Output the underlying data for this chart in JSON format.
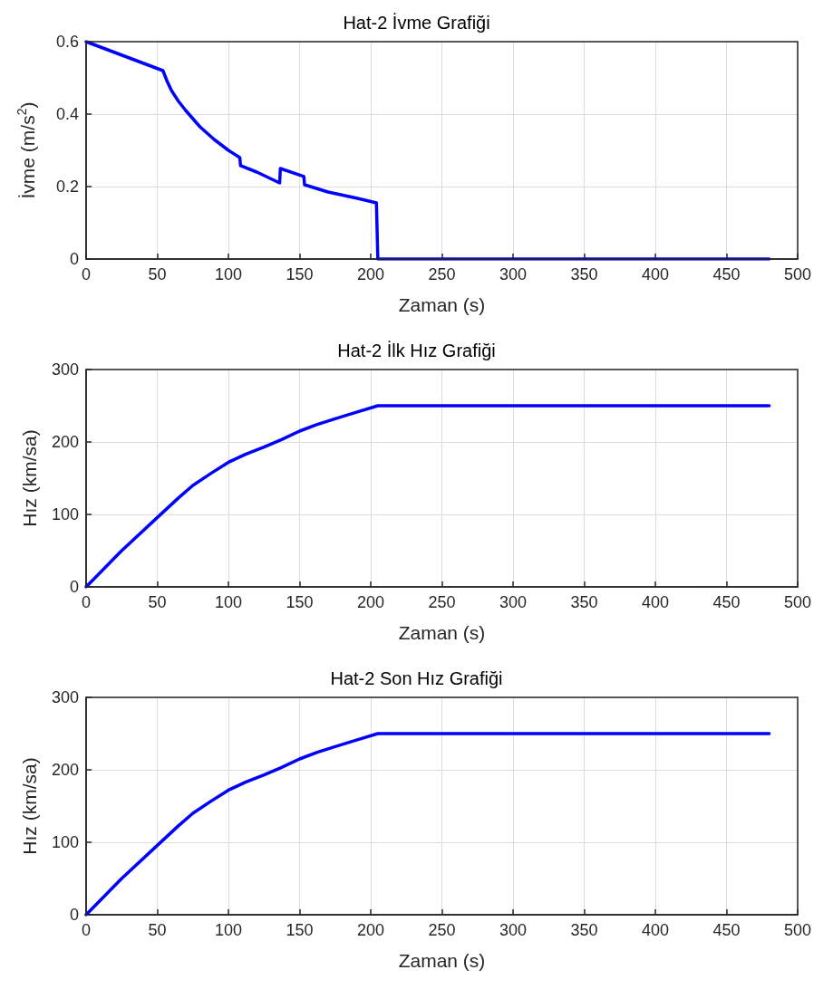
{
  "chart_data": [
    {
      "type": "line",
      "title": "Hat-2 İvme Grafiği",
      "xlabel": "Zaman (s)",
      "ylabel": "İvme (m/s$^{2}$)",
      "xlim": [
        0,
        500
      ],
      "xticks": [
        0,
        50,
        100,
        150,
        200,
        250,
        300,
        350,
        400,
        450,
        500
      ],
      "ylim": [
        0,
        0.6
      ],
      "yticks": [
        0,
        0.2,
        0.4,
        0.6
      ],
      "grid": true,
      "marker": "none",
      "line_style": "solid",
      "series": [
        {
          "color": "#0000ff",
          "x": [
            0,
            54,
            57,
            60,
            65,
            70,
            80,
            90,
            100,
            108,
            108.5,
            120,
            136,
            136.5,
            153,
            153.5,
            170,
            190,
            204,
            205,
            480
          ],
          "values": [
            0.6,
            0.52,
            0.49,
            0.465,
            0.435,
            0.41,
            0.365,
            0.33,
            0.3,
            0.28,
            0.258,
            0.24,
            0.21,
            0.25,
            0.228,
            0.205,
            0.185,
            0.168,
            0.155,
            0,
            0
          ]
        }
      ]
    },
    {
      "type": "line",
      "title": "Hat-2 İlk Hız Grafiği",
      "xlabel": "Zaman (s)",
      "ylabel": "Hız (km/sa)",
      "xlim": [
        0,
        500
      ],
      "xticks": [
        0,
        50,
        100,
        150,
        200,
        250,
        300,
        350,
        400,
        450,
        500
      ],
      "ylim": [
        0,
        300
      ],
      "yticks": [
        0,
        100,
        200,
        300
      ],
      "grid": true,
      "marker": "none",
      "line_style": "solid",
      "series": [
        {
          "color": "#0000ff",
          "x": [
            0,
            25,
            54,
            65,
            75,
            88,
            100,
            112,
            125,
            137,
            150,
            162,
            175,
            190,
            205,
            480
          ],
          "values": [
            0,
            50,
            103,
            123,
            140,
            157,
            172,
            183,
            193,
            203,
            215,
            224,
            232,
            241,
            250,
            250
          ]
        }
      ]
    },
    {
      "type": "line",
      "title": "Hat-2 Son Hız Grafiği",
      "xlabel": "Zaman (s)",
      "ylabel": "Hız (km/sa)",
      "xlim": [
        0,
        500
      ],
      "xticks": [
        0,
        50,
        100,
        150,
        200,
        250,
        300,
        350,
        400,
        450,
        500
      ],
      "ylim": [
        0,
        300
      ],
      "yticks": [
        0,
        100,
        200,
        300
      ],
      "grid": true,
      "marker": "none",
      "line_style": "solid",
      "series": [
        {
          "color": "#0000ff",
          "x": [
            0,
            25,
            54,
            65,
            75,
            88,
            100,
            112,
            125,
            137,
            150,
            162,
            175,
            190,
            205,
            480
          ],
          "values": [
            0,
            50,
            103,
            123,
            140,
            157,
            172,
            183,
            193,
            203,
            215,
            224,
            232,
            241,
            250,
            250
          ]
        }
      ]
    }
  ]
}
